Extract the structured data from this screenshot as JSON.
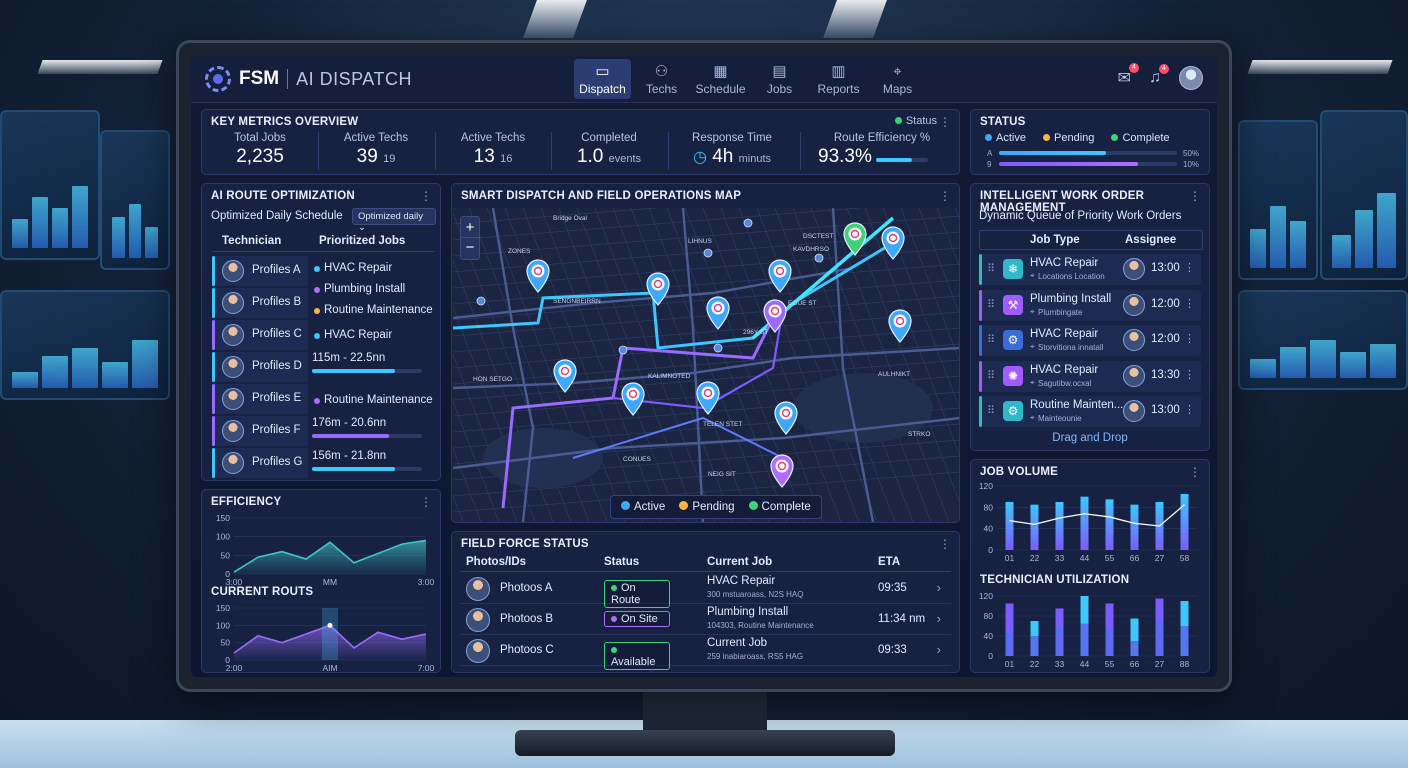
{
  "header": {
    "brand_fsm": "FSM",
    "brand_ai": "AI DISPATCH",
    "nav": [
      {
        "label": "Dispatch",
        "icon": "monitor-icon",
        "active": true
      },
      {
        "label": "Techs",
        "icon": "users-icon"
      },
      {
        "label": "Schedule",
        "icon": "calendar-icon"
      },
      {
        "label": "Jobs",
        "icon": "document-icon"
      },
      {
        "label": "Reports",
        "icon": "bar-chart-icon"
      },
      {
        "label": "Maps",
        "icon": "map-pin-icon"
      }
    ],
    "message_badge": "4",
    "notification_badge": "4"
  },
  "metrics": {
    "title": "KEY METRICS OVERVIEW",
    "status_label": "Status",
    "items": [
      {
        "label": "Total Jobs",
        "value": "2,235",
        "sub": ""
      },
      {
        "label": "Active Techs",
        "value": "39",
        "sub": "19"
      },
      {
        "label": "Active Techs",
        "value": "13",
        "sub": "16"
      },
      {
        "label": "Completed",
        "value": "1.0",
        "sub": "events"
      },
      {
        "label": "Response Time",
        "value": "4h",
        "sub": "minuts"
      },
      {
        "label": "Route Efficiency %",
        "value": "93.3%",
        "sub": ""
      }
    ],
    "route_efficiency_fill": 0.7
  },
  "status_panel": {
    "title": "STATUS",
    "legend": [
      "Active",
      "Pending",
      "Complete"
    ],
    "rows": [
      {
        "marker": "A",
        "pct_label": "50%",
        "fill": 0.6
      },
      {
        "marker": "9",
        "pct_label": "10%",
        "fill": 0.78
      }
    ]
  },
  "route": {
    "title": "AI ROUTE OPTIMIZATION",
    "subtitle": "Optimized Daily Schedule",
    "dropdown": "Optimized daily",
    "col_tech": "Technician",
    "col_jobs": "Prioritized Jobs",
    "rows": [
      {
        "name": "Profiles A",
        "color": "#3ec6ff"
      },
      {
        "name": "Profiles B",
        "color": "#3ec6ff"
      },
      {
        "name": "Profiles C",
        "color": "#9a6bff"
      },
      {
        "name": "Profiles D",
        "color": "#3ec6ff"
      },
      {
        "name": "Profiles E",
        "color": "#9a6bff"
      },
      {
        "name": "Profiles F",
        "color": "#9a6bff"
      },
      {
        "name": "Profiles G",
        "color": "#3ec6ff"
      }
    ],
    "jobs": [
      {
        "label": "HVAC Repair",
        "dot": "#3ec6ff"
      },
      {
        "label": "Plumbing Install",
        "dot": "#b36bff"
      },
      {
        "label": "Routine Maintenance",
        "dot": "#ffb347"
      },
      {
        "label": "HVAC Repair",
        "dot": "#3ec6ff"
      },
      {
        "label": "115m - 22.5nn",
        "fill": 0.75,
        "color": "#3ec6ff"
      },
      {
        "label": "Routine Maintenance",
        "dot": "#b36bff"
      },
      {
        "label": "176m - 20.6nn",
        "fill": 0.7,
        "color": "#9a6bff"
      },
      {
        "label": "156m - 21.8nn",
        "fill": 0.75,
        "color": "#3ec6ff"
      }
    ]
  },
  "map": {
    "title": "SMART DISPATCH AND FIELD OPERATIONS MAP",
    "zoom_in": "+",
    "zoom_out": "−",
    "legend": [
      {
        "label": "Active",
        "color": "#3ea8ff"
      },
      {
        "label": "Pending",
        "color": "#ffb347"
      },
      {
        "label": "Complete",
        "color": "#3ed37a"
      }
    ],
    "street_labels": [
      "Bridge Oval",
      "ZONES",
      "LIHNUS",
      "KAVDHRSO",
      "DSCTEST",
      "SENGNBEIRRN",
      "EOUE ST",
      "296Y ST",
      "HON SETGO",
      "KALIMNOTED",
      "AULHNIKT",
      "TELEN STET",
      "CONUES",
      "NEIG SIT",
      "STRKO"
    ]
  },
  "work_orders": {
    "title": "INTELLIGENT WORK ORDER MANAGEMENT",
    "subtitle": "Dynamic Queue of Priority Work Orders",
    "col_type": "Job Type",
    "col_assignee": "Assignee",
    "rows": [
      {
        "job": "HVAC Repair",
        "loc": "Locations Location",
        "time": "13:00",
        "color": "#2fb8c8",
        "icon": "snowflake-icon",
        "glyph": "❄"
      },
      {
        "job": "Plumbing Install",
        "loc": "Plumbingate",
        "time": "12:00",
        "color": "#a15bff",
        "icon": "wrench-icon",
        "glyph": "⚒"
      },
      {
        "job": "HVAC Repair",
        "loc": "Storvitiona innatall",
        "time": "12:00",
        "color": "#3b6bd8",
        "icon": "tool-icon",
        "glyph": "⚙"
      },
      {
        "job": "HVAC Repair",
        "loc": "Sagutibw.ocxal",
        "time": "13:30",
        "color": "#a15bff",
        "icon": "fan-icon",
        "glyph": "✺"
      },
      {
        "job": "Routine Mainten...",
        "loc": "Mainteounie",
        "time": "13:00",
        "color": "#2fb8c8",
        "icon": "maintenance-icon",
        "glyph": "⚙"
      }
    ],
    "footer": "Drag and Drop"
  },
  "efficiency": {
    "title": "EFFICIENCY",
    "y_ticks": [
      "150",
      "100",
      "50",
      "0"
    ],
    "x_ticks": [
      "3:00",
      "MM",
      "3:00"
    ]
  },
  "current_routs": {
    "title": "CURRENT ROUTS",
    "y_ticks": [
      "150",
      "100",
      "50",
      "0"
    ],
    "x_ticks": [
      "2:00",
      "AIM",
      "7:00"
    ]
  },
  "field_force": {
    "title": "FIELD FORCE STATUS",
    "columns": [
      "Photos/IDs",
      "Status",
      "Current Job",
      "ETA"
    ],
    "rows": [
      {
        "name": "Photoos A",
        "status": "On Route",
        "status_color": "#3ed37a",
        "job": "HVAC Repair",
        "addr": "300 mstuaroass, N2S HAQ",
        "eta": "09:35"
      },
      {
        "name": "Photoos B",
        "status": "On Site",
        "status_color": "#b36bff",
        "job": "Plumbing Install",
        "addr": "104303, Routine Maintenance",
        "eta": "11:34 nm"
      },
      {
        "name": "Photoos C",
        "status": "Available",
        "status_color": "#3ed37a",
        "job": "Current Job",
        "addr": "259 inabiaroass, RS5 HAG",
        "eta": "09:33"
      }
    ]
  },
  "chart_data": [
    {
      "type": "area",
      "title": "EFFICIENCY",
      "x": [
        0,
        1,
        2,
        3,
        4,
        5,
        6,
        7,
        8
      ],
      "values": [
        5,
        45,
        60,
        40,
        85,
        30,
        55,
        80,
        90
      ],
      "ylim": [
        0,
        150
      ]
    },
    {
      "type": "area",
      "title": "CURRENT ROUTS",
      "x": [
        0,
        1,
        2,
        3,
        4,
        5,
        6,
        7,
        8
      ],
      "values": [
        20,
        70,
        50,
        75,
        100,
        35,
        80,
        60,
        75
      ],
      "ylim": [
        0,
        150
      ]
    },
    {
      "type": "bar",
      "title": "JOB VOLUME",
      "categories": [
        "01",
        "22",
        "33",
        "44",
        "55",
        "66",
        "27",
        "58"
      ],
      "series": [
        {
          "values": [
            90,
            85,
            90,
            100,
            95,
            85,
            90,
            105
          ]
        }
      ],
      "line": [
        55,
        48,
        60,
        68,
        62,
        50,
        45,
        85
      ],
      "y_ticks": [
        0,
        40,
        80,
        120
      ],
      "ylim": [
        0,
        120
      ]
    },
    {
      "type": "bar",
      "title": "TECHNICIAN UTILIZATION",
      "categories": [
        "01",
        "22",
        "33",
        "44",
        "55",
        "66",
        "27",
        "88"
      ],
      "series": [
        {
          "values": [
            105,
            70,
            95,
            120,
            105,
            75,
            115,
            110
          ]
        },
        {
          "values": [
            50,
            40,
            60,
            65,
            55,
            30,
            70,
            60
          ]
        }
      ],
      "y_ticks": [
        0,
        40,
        80,
        120
      ],
      "ylim": [
        0,
        120
      ]
    }
  ]
}
